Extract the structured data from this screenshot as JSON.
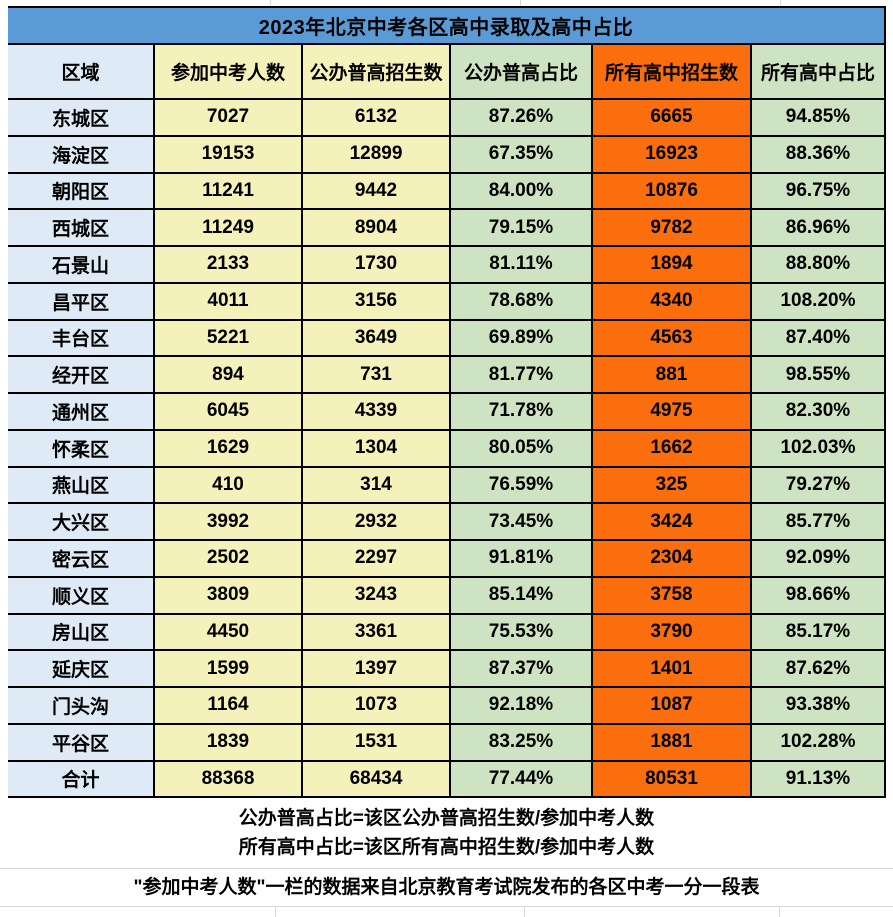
{
  "chart_data": {
    "type": "table",
    "title": "2023年北京中考各区高中录取及高中占比",
    "columns": [
      "区域",
      "参加中考人数",
      "公办普高招生数",
      "公办普高占比",
      "所有高中招生数",
      "所有高中占比"
    ],
    "rows": [
      [
        "东城区",
        "7027",
        "6132",
        "87.26%",
        "6665",
        "94.85%"
      ],
      [
        "海淀区",
        "19153",
        "12899",
        "67.35%",
        "16923",
        "88.36%"
      ],
      [
        "朝阳区",
        "11241",
        "9442",
        "84.00%",
        "10876",
        "96.75%"
      ],
      [
        "西城区",
        "11249",
        "8904",
        "79.15%",
        "9782",
        "86.96%"
      ],
      [
        "石景山",
        "2133",
        "1730",
        "81.11%",
        "1894",
        "88.80%"
      ],
      [
        "昌平区",
        "4011",
        "3156",
        "78.68%",
        "4340",
        "108.20%"
      ],
      [
        "丰台区",
        "5221",
        "3649",
        "69.89%",
        "4563",
        "87.40%"
      ],
      [
        "经开区",
        "894",
        "731",
        "81.77%",
        "881",
        "98.55%"
      ],
      [
        "通州区",
        "6045",
        "4339",
        "71.78%",
        "4975",
        "82.30%"
      ],
      [
        "怀柔区",
        "1629",
        "1304",
        "80.05%",
        "1662",
        "102.03%"
      ],
      [
        "燕山区",
        "410",
        "314",
        "76.59%",
        "325",
        "79.27%"
      ],
      [
        "大兴区",
        "3992",
        "2932",
        "73.45%",
        "3424",
        "85.77%"
      ],
      [
        "密云区",
        "2502",
        "2297",
        "91.81%",
        "2304",
        "92.09%"
      ],
      [
        "顺义区",
        "3809",
        "3243",
        "85.14%",
        "3758",
        "98.66%"
      ],
      [
        "房山区",
        "4450",
        "3361",
        "75.53%",
        "3790",
        "85.17%"
      ],
      [
        "延庆区",
        "1599",
        "1397",
        "87.37%",
        "1401",
        "87.62%"
      ],
      [
        "门头沟",
        "1164",
        "1073",
        "92.18%",
        "1087",
        "93.38%"
      ],
      [
        "平谷区",
        "1839",
        "1531",
        "83.25%",
        "1881",
        "102.28%"
      ]
    ],
    "total_row": [
      "合计",
      "88368",
      "68434",
      "77.44%",
      "80531",
      "91.13%"
    ]
  },
  "notes": {
    "formula_line1": "公办普高占比=该区公办普高招生数/参加中考人数",
    "formula_line2": "所有高中占比=该区所有高中招生数/参加中考人数",
    "source_line": "\"参加中考人数\"一栏的数据来自北京教育考试院发布的各区中考一分一段表"
  },
  "colors": {
    "title_bar": "#5B9BD5",
    "border": "#000000",
    "gridline": "#D8D8D8",
    "column_colors": [
      "#DEEBF6",
      "#F4F1BB",
      "#F4F1BB",
      "#CEE3C1",
      "#FA6E0E",
      "#CEE3C1"
    ]
  }
}
